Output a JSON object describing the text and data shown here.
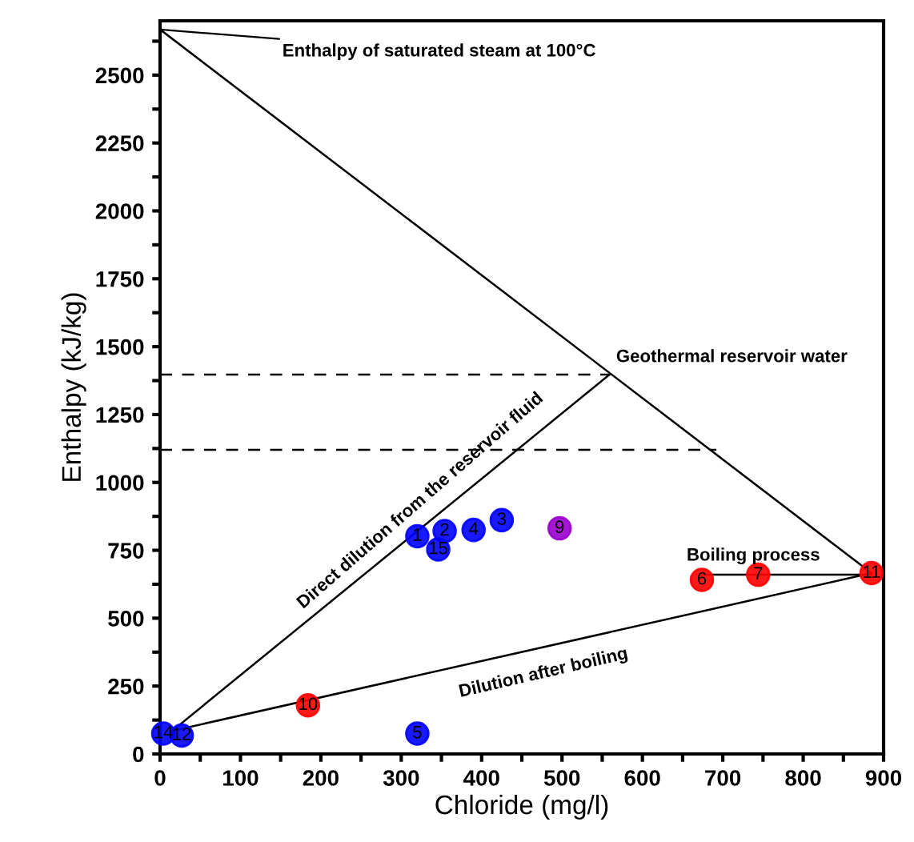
{
  "chart_data": {
    "type": "scatter",
    "xlabel": "Chloride (mg/l)",
    "ylabel": "Enthalpy (kJ/kg)",
    "xlim": [
      0,
      900
    ],
    "ylim": [
      0,
      2700
    ],
    "xticks": [
      0,
      {
        "value": 50,
        "label": null
      },
      100,
      {
        "value": 150,
        "label": null
      },
      200,
      {
        "value": 250,
        "label": null
      },
      300,
      {
        "value": 350,
        "label": null
      },
      400,
      {
        "value": 450,
        "label": null
      },
      500,
      {
        "value": 550,
        "label": null
      },
      600,
      {
        "value": 650,
        "label": null
      },
      700,
      {
        "value": 750,
        "label": null
      },
      800,
      {
        "value": 850,
        "label": null
      },
      900
    ],
    "yticks": [
      0,
      {
        "value": 125,
        "label": null
      },
      250,
      {
        "value": 375,
        "label": null
      },
      500,
      {
        "value": 625,
        "label": null
      },
      750,
      {
        "value": 875,
        "label": null
      },
      1000,
      {
        "value": 1125,
        "label": null
      },
      1250,
      {
        "value": 1375,
        "label": null
      },
      1500,
      {
        "value": 1625,
        "label": null
      },
      1750,
      {
        "value": 1875,
        "label": null
      },
      2000,
      {
        "value": 2125,
        "label": null
      },
      2250,
      {
        "value": 2375,
        "label": null
      },
      2500,
      {
        "value": 2625,
        "label": null
      }
    ],
    "grid": false,
    "series": [
      {
        "type": "line",
        "color": "#000000",
        "line_style": "solid",
        "marker": "none",
        "x": [
          0,
          885
        ],
        "values": [
          2668,
          666
        ]
      },
      {
        "type": "line",
        "color": "#000000",
        "line_style": "solid",
        "marker": "none",
        "x": [
          15,
          559
        ],
        "values": [
          85,
          1397
        ]
      },
      {
        "type": "line",
        "color": "#000000",
        "line_style": "solid",
        "marker": "none",
        "x": [
          15,
          885
        ],
        "values": [
          85,
          666
        ]
      },
      {
        "type": "line",
        "color": "#000000",
        "line_style": "solid",
        "marker": "none",
        "x": [
          674,
          885
        ],
        "values": [
          660,
          660
        ]
      },
      {
        "type": "line",
        "color": "#000000",
        "line_style": "dashed",
        "marker": "none",
        "x": [
          0,
          559
        ],
        "values": [
          1397,
          1397
        ]
      },
      {
        "type": "line",
        "color": "#000000",
        "line_style": "dashed",
        "marker": "none",
        "x": [
          0,
          692
        ],
        "values": [
          1120,
          1120
        ]
      },
      {
        "color": "#0000ff",
        "marker": "circle",
        "x": [
          320,
          346,
          320,
          4,
          27
        ],
        "values": [
          802,
          753,
          75,
          75,
          68
        ]
      },
      {
        "color": "#0000ff",
        "marker": "circle",
        "x": [
          354,
          390,
          425
        ],
        "values": [
          821,
          825,
          861
        ]
      },
      {
        "color": "#9900cc",
        "marker": "circle",
        "x": [
          497
        ],
        "values": [
          831
        ]
      },
      {
        "color": "#ff0000",
        "marker": "circle",
        "x": [
          674,
          744,
          885,
          184
        ],
        "values": [
          641,
          660,
          666,
          179
        ]
      }
    ],
    "annotations": [
      {
        "text": "Enthalpy of saturated steam at 100°C",
        "x": 0,
        "y": 2668
      },
      {
        "text": "Geothermal reservoir water",
        "x": 559,
        "y": 1397
      },
      "Direct dilution from the reservoir fluid",
      "Dilution after boiling",
      "Boiling process",
      {
        "text": "1",
        "x": 320,
        "y": 802
      },
      {
        "text": "15",
        "x": 346,
        "y": 753
      },
      {
        "text": "5",
        "x": 320,
        "y": 75
      },
      {
        "text": "14",
        "x": 4,
        "y": 75
      },
      {
        "text": "12",
        "x": 27,
        "y": 68
      },
      {
        "text": "2",
        "x": 354,
        "y": 821
      },
      {
        "text": "4",
        "x": 390,
        "y": 825
      },
      {
        "text": "3",
        "x": 425,
        "y": 861
      },
      {
        "text": "9",
        "x": 497,
        "y": 831
      },
      {
        "text": "6",
        "x": 674,
        "y": 641
      },
      {
        "text": "7",
        "x": 744,
        "y": 660
      },
      {
        "text": "11",
        "x": 885,
        "y": 666
      },
      {
        "text": "10",
        "x": 184,
        "y": 179
      }
    ]
  }
}
